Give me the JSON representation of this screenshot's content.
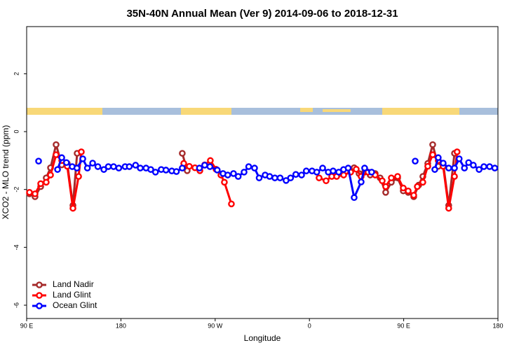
{
  "chart_data": {
    "type": "line",
    "title": "35N-40N Annual Mean (Ver 9)   2014-09-06 to 2018-12-31",
    "xlabel": "Longitude",
    "ylabel": "XCO2 - MLO trend (ppm)",
    "xlim": [
      90,
      540
    ],
    "ylim": [
      -6.46,
      3.63
    ],
    "xticks": [
      {
        "value": 90,
        "label": "90 E"
      },
      180,
      {
        "value": 270,
        "label": "90 W"
      },
      {
        "value": 360,
        "label": "0"
      },
      {
        "value": 450,
        "label": "90 E"
      },
      {
        "value": 540,
        "label": "180"
      }
    ],
    "yticks": [
      -6,
      -4,
      -2,
      0,
      2
    ],
    "legend": "bottom-left",
    "series": [
      {
        "name": "Land Nadir",
        "color": "#a52a2a",
        "x": [
          92.7,
          98,
          103.4,
          108.7,
          112.8,
          118.1,
          123.5,
          128.8,
          134.2,
          138.2,
          null,
          238.6,
          243.3,
          null,
          402.7,
          407.4,
          412.7,
          418,
          422.8,
          427.5,
          432.8,
          438.2,
          444.2,
          449.6,
          454.3,
          459.6,
          464.3,
          468.3,
          473,
          477.7,
          483,
          487.7,
          493,
          498.5
        ],
        "values": [
          -2.15,
          -2.25,
          -1.9,
          -1.6,
          -1.25,
          -0.45,
          -1.15,
          -1.1,
          -2.55,
          -0.75,
          null,
          -0.75,
          -1.35,
          null,
          -1.25,
          -1.45,
          -1.4,
          -1.5,
          -1.45,
          -1.6,
          -2.1,
          -1.75,
          -1.6,
          -2.05,
          -2.1,
          -2.25,
          -1.85,
          -1.55,
          -1.1,
          -0.45,
          -1.2,
          -1.1,
          -2.55,
          -0.75
        ]
      },
      {
        "name": "Land Glint",
        "color": "#ff0000",
        "x": [
          92.7,
          98,
          103.4,
          108.7,
          112.8,
          118.1,
          123.5,
          128.8,
          134.2,
          139.6,
          142.2,
          null,
          240,
          245.3,
          250.7,
          255.4,
          260,
          265.4,
          270.8,
          275.5,
          278.8,
          285.5,
          null,
          369.2,
          375.9,
          381.3,
          386,
          392.7,
          399.4,
          404.7,
          409.4,
          416,
          422.8,
          429.5,
          432.8,
          438.2,
          444.2,
          449.6,
          454.3,
          459.6,
          463,
          468.3,
          473,
          477.7,
          483,
          487.7,
          493,
          498.5,
          501
        ],
        "values": [
          -2.1,
          -2.15,
          -1.8,
          -1.75,
          -1.5,
          -0.8,
          -1.0,
          -1.2,
          -2.65,
          -1.55,
          -0.7,
          null,
          -1.1,
          -1.2,
          -1.25,
          -1.35,
          -1.15,
          -1.0,
          -1.3,
          -1.5,
          -1.75,
          -2.5,
          null,
          -1.6,
          -1.7,
          -1.55,
          -1.55,
          -1.5,
          -1.4,
          -1.3,
          -1.55,
          -1.4,
          -1.5,
          -1.7,
          -1.9,
          -1.6,
          -1.55,
          -1.95,
          -2.05,
          -2.2,
          -1.9,
          -1.75,
          -1.2,
          -0.8,
          -1.0,
          -1.2,
          -2.65,
          -1.55,
          -0.7
        ]
      },
      {
        "name": "Ocean Glint",
        "color": "#0000ff",
        "x": [
          101.4,
          null,
          119.5,
          123.5,
          128,
          133.5,
          138,
          143.6,
          148,
          153,
          158,
          163.7,
          168,
          173,
          178,
          184,
          188,
          194,
          198.5,
          204,
          208.5,
          213,
          218.5,
          223,
          228.6,
          233,
          238.6,
          null,
          255,
          260,
          265,
          272,
          277.5,
          282,
          287.5,
          292,
          297.6,
          302,
          307.6,
          312,
          317.7,
          322,
          327,
          332,
          337.7,
          342,
          347,
          352.5,
          357,
          362.5,
          367,
          372.6,
          378,
          382.6,
          388,
          392.6,
          397,
          402.7,
          409.4,
          412.7,
          419.4,
          null,
          461,
          null,
          479.7,
          483,
          487.7,
          493,
          498.5,
          503,
          508,
          512,
          516.5,
          522,
          526.6,
          532,
          537
        ],
        "values": [
          -1.02,
          null,
          -1.31,
          -0.9,
          -1.07,
          -1.21,
          -1.26,
          -0.94,
          -1.26,
          -1.09,
          -1.21,
          -1.31,
          -1.21,
          -1.21,
          -1.26,
          -1.21,
          -1.21,
          -1.16,
          -1.26,
          -1.26,
          -1.31,
          -1.4,
          -1.31,
          -1.33,
          -1.36,
          -1.38,
          -1.26,
          null,
          -1.26,
          -1.16,
          -1.21,
          -1.33,
          -1.45,
          -1.5,
          -1.45,
          -1.55,
          -1.4,
          -1.21,
          -1.26,
          -1.6,
          -1.5,
          -1.55,
          -1.6,
          -1.6,
          -1.69,
          -1.6,
          -1.48,
          -1.5,
          -1.36,
          -1.36,
          -1.4,
          -1.26,
          -1.4,
          -1.36,
          -1.4,
          -1.31,
          -1.26,
          -2.28,
          -1.74,
          -1.26,
          -1.4,
          null,
          -1.02,
          null,
          -1.31,
          -0.9,
          -1.09,
          -1.26,
          -1.26,
          -0.94,
          -1.26,
          -1.07,
          -1.16,
          -1.31,
          -1.21,
          -1.21,
          -1.26
        ]
      }
    ]
  }
}
